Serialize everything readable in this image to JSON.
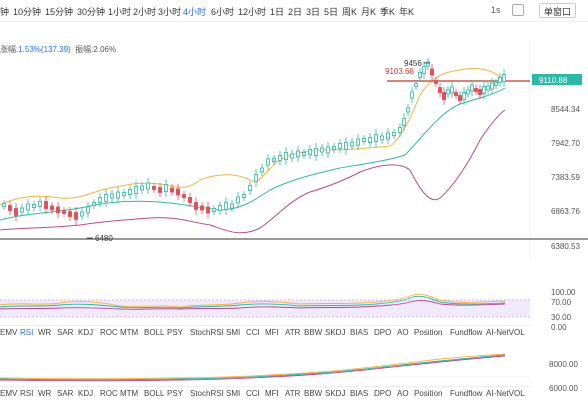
{
  "toolbar": {
    "timeframes": [
      {
        "label": "钟"
      },
      {
        "label": "10分钟"
      },
      {
        "label": "15分钟"
      },
      {
        "label": "30分钟"
      },
      {
        "label": "1小时"
      },
      {
        "label": "2小时"
      },
      {
        "label": "3小时"
      },
      {
        "label": "4小时",
        "active": true
      },
      {
        "label": "6小时"
      },
      {
        "label": "12小时"
      },
      {
        "label": "1日"
      },
      {
        "label": "2日"
      },
      {
        "label": "3日"
      },
      {
        "label": "5日"
      },
      {
        "label": "周K"
      },
      {
        "label": "月K"
      },
      {
        "label": "季K"
      },
      {
        "label": "年K"
      }
    ],
    "right": {
      "interval_label": "1s",
      "window_button": "单窗口"
    }
  },
  "indicators": {
    "amplitude_label": "涨幅:",
    "amplitude_value": "1.53%(137.39)",
    "swing_label": "振幅:",
    "swing_value": "2.06%"
  },
  "price_axis": {
    "labels": [
      "8544.34",
      "7942.70",
      "7383.59",
      "6863.76",
      "6380.53"
    ],
    "current_price": "9110.88",
    "current_price_color": "#2eb8a6"
  },
  "annotations": {
    "high_marker": "9456",
    "ref_line_label": "9103.66",
    "low_marker": "6480"
  },
  "rsi_axis": {
    "labels": [
      "100.00",
      "70.00",
      "30.00",
      "0.00"
    ]
  },
  "vol_axis": {
    "labels": [
      "8000.00",
      "6000.00"
    ]
  },
  "indicator_tabs": [
    {
      "label": "EMV"
    },
    {
      "label": "RSI",
      "active": true
    },
    {
      "label": "WR"
    },
    {
      "label": "SAR"
    },
    {
      "label": "KDJ"
    },
    {
      "label": "ROC"
    },
    {
      "label": "MTM"
    },
    {
      "label": "BOLL"
    },
    {
      "label": "PSY"
    },
    {
      "label": "StochRSI"
    },
    {
      "label": "SMI"
    },
    {
      "label": "CCI"
    },
    {
      "label": "MFI"
    },
    {
      "label": "ATR"
    },
    {
      "label": "BBW"
    },
    {
      "label": "SKDJ"
    },
    {
      "label": "BIAS"
    },
    {
      "label": "DPO"
    },
    {
      "label": "AO"
    },
    {
      "label": "Position"
    },
    {
      "label": "Fundflow"
    },
    {
      "label": "AI-NetVOL"
    }
  ],
  "colors": {
    "up": "#2eb8a6",
    "down": "#e0525b",
    "boll_upper": "#f0b440",
    "boll_mid": "#2eb8a6",
    "boll_lower": "#b84a8c",
    "ref_line": "#c0392b",
    "active_tab": "#2a6ff0"
  }
}
